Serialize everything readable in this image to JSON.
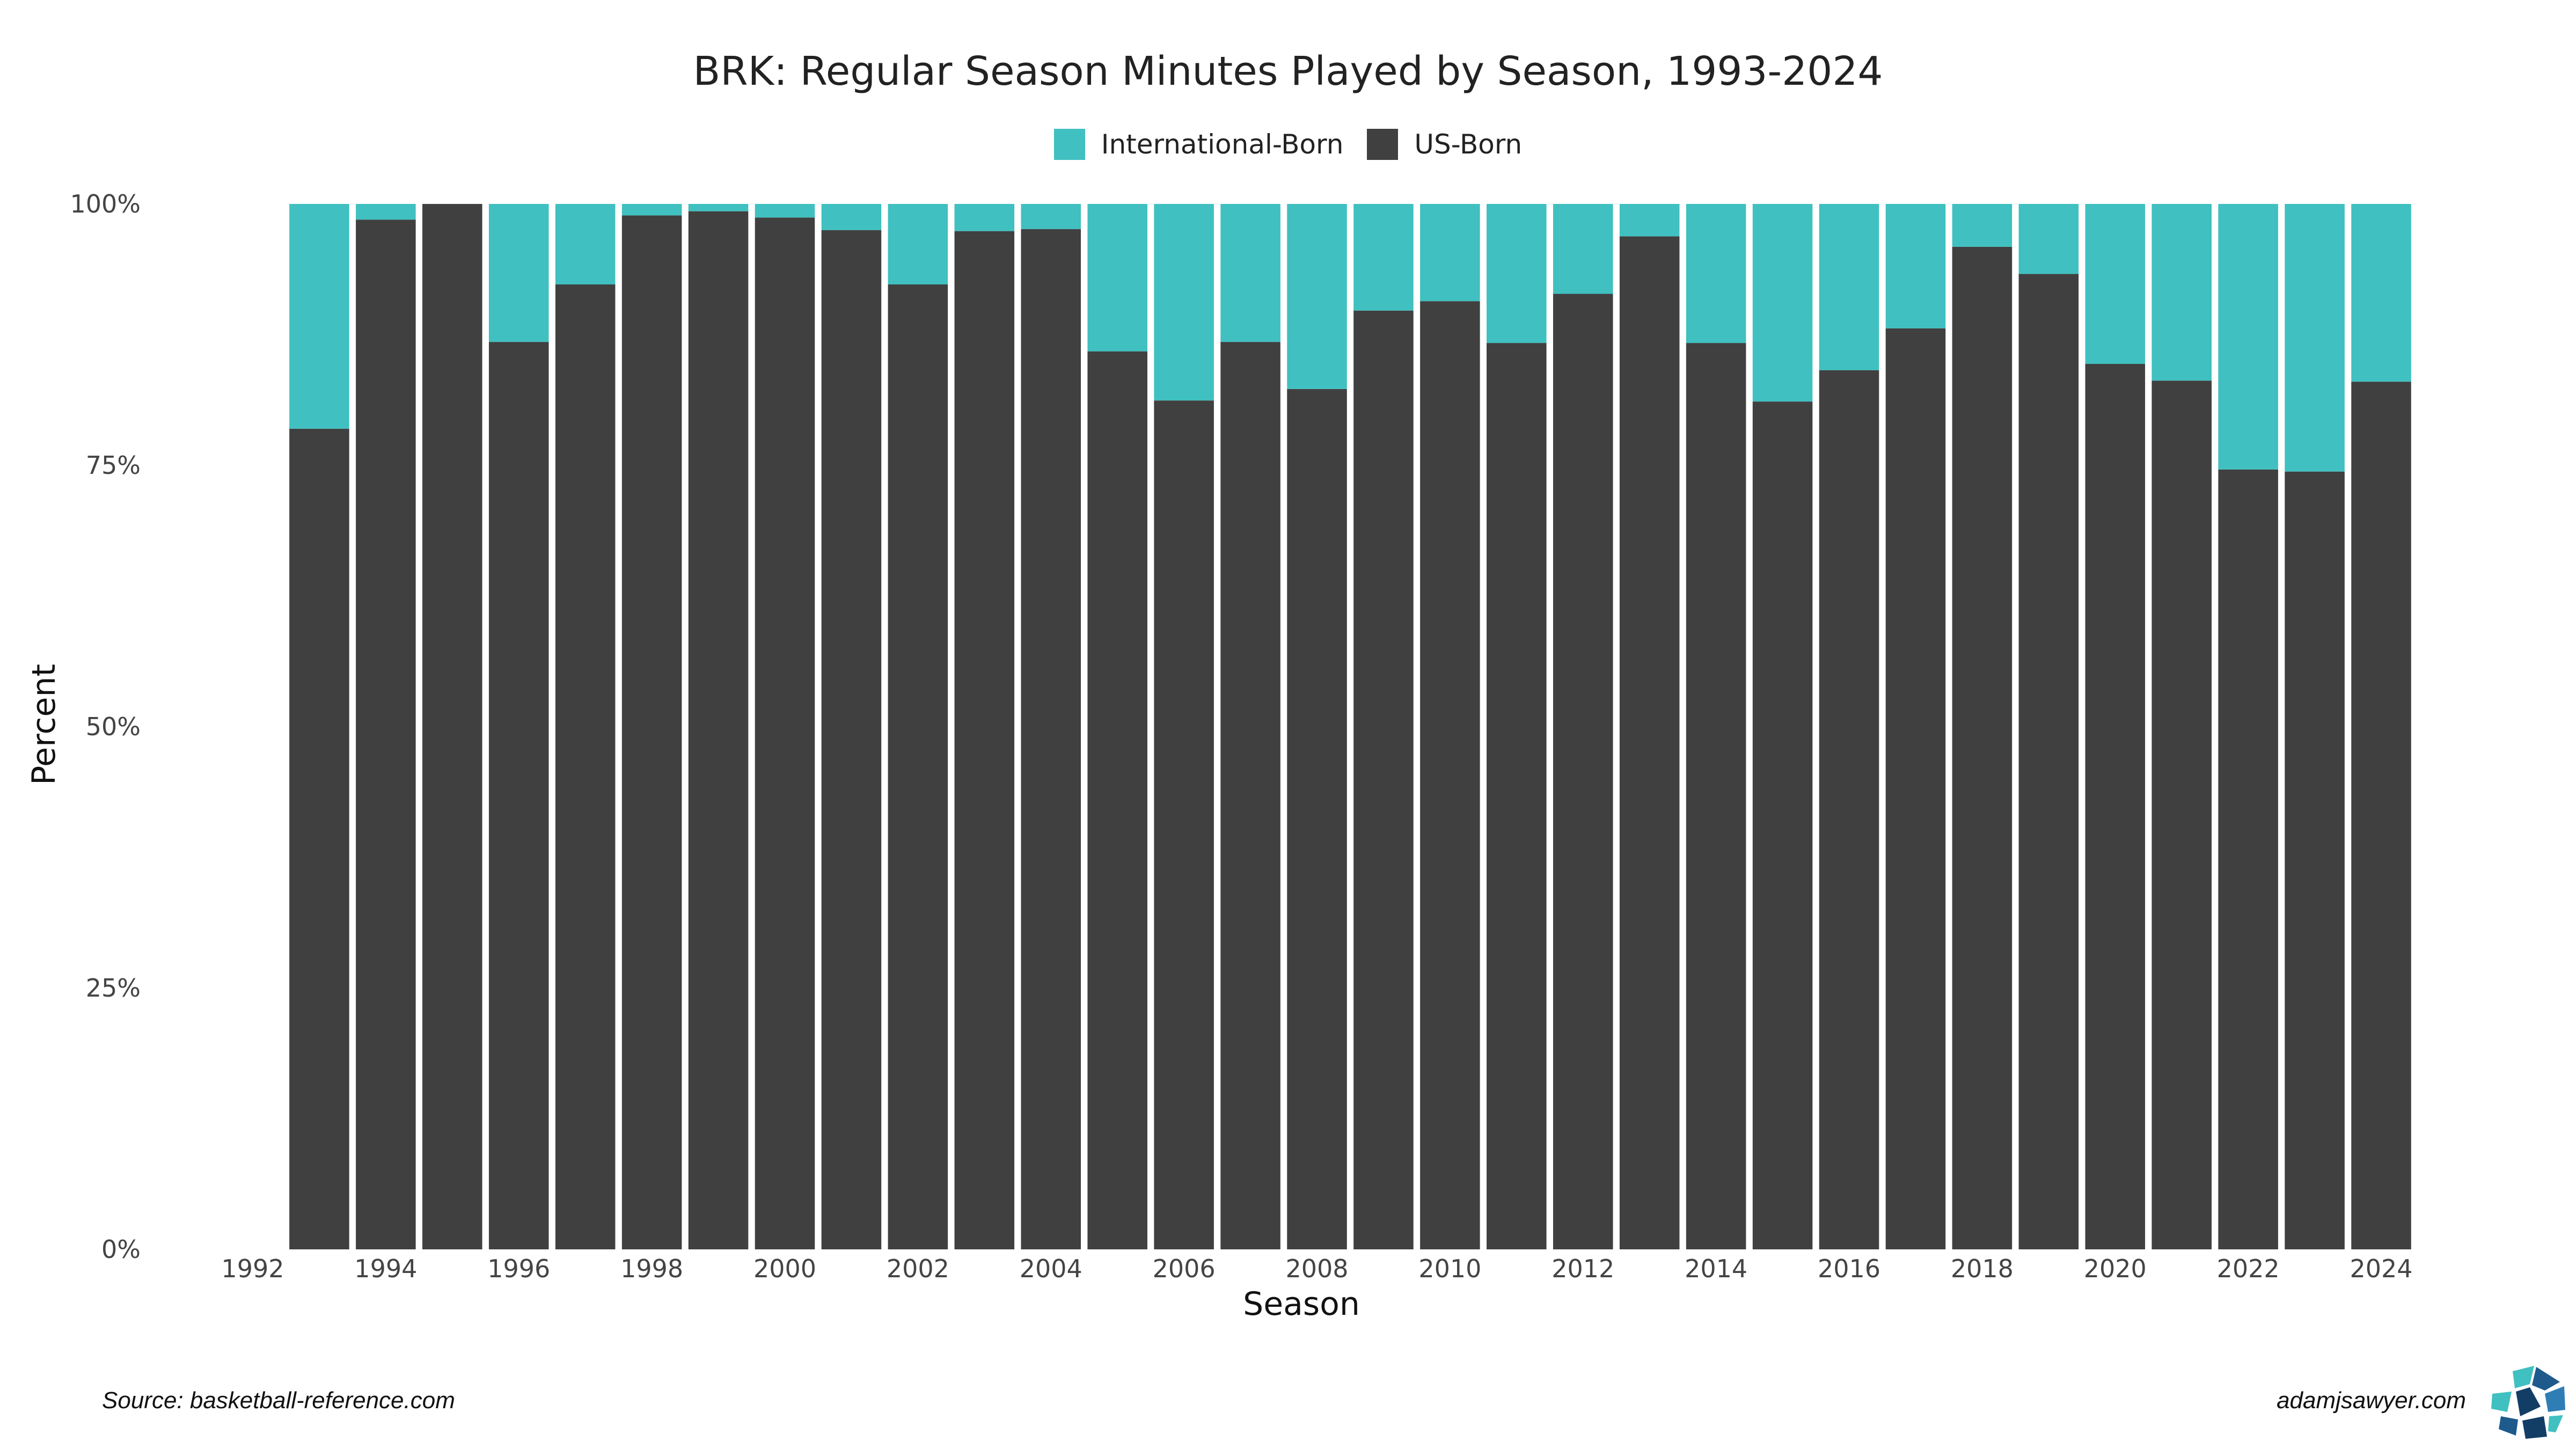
{
  "chart_data": {
    "type": "bar",
    "stacked": true,
    "percent": true,
    "title": "BRK: Regular Season Minutes Played by Season, 1993-2024",
    "xlabel": "Season",
    "ylabel": "Percent",
    "categories": [
      1993,
      1994,
      1995,
      1996,
      1997,
      1998,
      1999,
      2000,
      2001,
      2002,
      2003,
      2004,
      2005,
      2006,
      2007,
      2008,
      2009,
      2010,
      2011,
      2012,
      2013,
      2014,
      2015,
      2016,
      2017,
      2018,
      2019,
      2020,
      2021,
      2022,
      2023,
      2024
    ],
    "series": [
      {
        "name": "International-Born",
        "color": "#40C0C0",
        "values": [
          21.5,
          1.5,
          0.0,
          13.2,
          7.7,
          1.1,
          0.7,
          1.3,
          2.5,
          7.7,
          2.6,
          2.4,
          14.1,
          18.8,
          13.2,
          17.7,
          10.2,
          9.3,
          13.3,
          8.6,
          3.1,
          13.3,
          18.9,
          15.9,
          11.9,
          4.1,
          6.7,
          15.3,
          16.9,
          25.4,
          25.6,
          17.0
        ]
      },
      {
        "name": "US-Born",
        "color": "#404040",
        "values": [
          78.5,
          98.5,
          100.0,
          86.8,
          92.3,
          98.9,
          99.3,
          98.7,
          97.5,
          92.3,
          97.4,
          97.6,
          85.9,
          81.2,
          86.8,
          82.3,
          89.8,
          90.7,
          86.7,
          91.4,
          96.9,
          86.7,
          81.1,
          84.1,
          88.1,
          95.9,
          93.3,
          84.7,
          83.1,
          74.6,
          74.4,
          83.0
        ]
      }
    ],
    "ylim": [
      0,
      100
    ],
    "xlim": [
      1992,
      2024
    ],
    "y_ticks": [
      "0%",
      "25%",
      "50%",
      "75%",
      "100%"
    ],
    "y_tick_values": [
      0,
      25,
      50,
      75,
      100
    ],
    "x_ticks": [
      "1992",
      "1994",
      "1996",
      "1998",
      "2000",
      "2002",
      "2004",
      "2006",
      "2008",
      "2010",
      "2012",
      "2014",
      "2016",
      "2018",
      "2020",
      "2022",
      "2024"
    ],
    "x_tick_values": [
      1992,
      1994,
      1996,
      1998,
      2000,
      2002,
      2004,
      2006,
      2008,
      2010,
      2012,
      2014,
      2016,
      2018,
      2020,
      2022,
      2024
    ],
    "legend_position": "top-center",
    "grid": false
  },
  "legend": [
    {
      "label": "International-Born",
      "color": "#40C0C0"
    },
    {
      "label": "US-Born",
      "color": "#404040"
    }
  ],
  "source": "Source: basketball-reference.com",
  "credit": "adamjsawyer.com"
}
